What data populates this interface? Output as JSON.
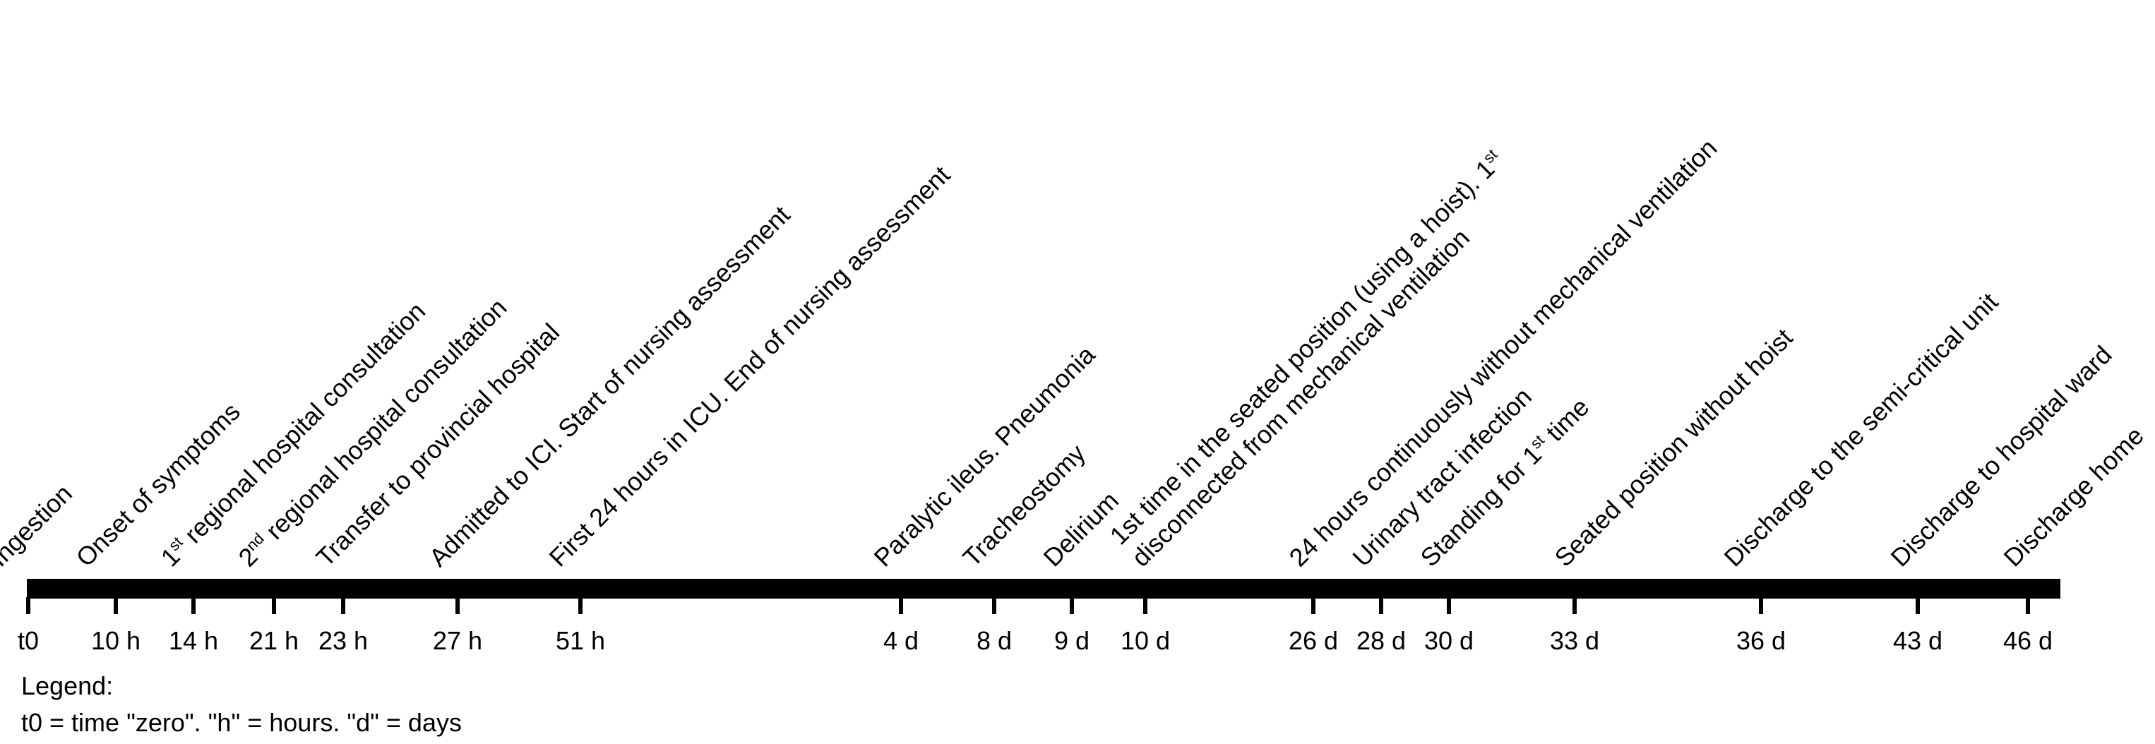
{
  "events": [
    {
      "id": "ingestion",
      "time": "t0",
      "lines": [
        [
          "Ingestion"
        ]
      ]
    },
    {
      "id": "onset",
      "time": "10 h",
      "lines": [
        [
          "Onset of symptoms"
        ]
      ]
    },
    {
      "id": "regional-1",
      "time": "14 h",
      "lines": [
        [
          "1",
          {
            "sup": "st"
          },
          " regional hospital consultation"
        ]
      ]
    },
    {
      "id": "regional-2",
      "time": "21 h",
      "lines": [
        [
          "2",
          {
            "sup": "nd"
          },
          " regional hospital consultation"
        ]
      ]
    },
    {
      "id": "transfer",
      "time": "23 h",
      "lines": [
        [
          "Transfer to provincial hospital"
        ]
      ]
    },
    {
      "id": "admitted",
      "time": "27 h",
      "lines": [
        [
          "Admitted to ICI.  Start of nursing assessment"
        ]
      ]
    },
    {
      "id": "first-24h",
      "time": "51 h",
      "lines": [
        [
          "First 24 hours in ICU.  End of nursing assessment"
        ]
      ]
    },
    {
      "id": "ileus",
      "time": "4 d",
      "lines": [
        [
          "Paralytic ileus.   Pneumonia"
        ]
      ]
    },
    {
      "id": "tracheostomy",
      "time": "8 d",
      "lines": [
        [
          "Tracheostomy"
        ]
      ]
    },
    {
      "id": "delirium",
      "time": "9 d",
      "lines": [
        [
          "Delirium"
        ]
      ]
    },
    {
      "id": "seated-hoist",
      "time": "10 d",
      "lines": [
        [
          "1st time in the seated position (using a hoist).  1",
          {
            "sup": "st"
          }
        ],
        [
          "disconnected from mechanical ventilation"
        ]
      ]
    },
    {
      "id": "no-ventilation",
      "time": "26 d",
      "lines": [
        [
          "24 hours continuously without mechanical ventilation"
        ]
      ]
    },
    {
      "id": "uti",
      "time": "28 d",
      "lines": [
        [
          "Urinary tract infection"
        ]
      ]
    },
    {
      "id": "standing",
      "time": "30 d",
      "lines": [
        [
          "Standing for 1",
          {
            "sup": "st"
          },
          " time"
        ]
      ]
    },
    {
      "id": "seated-no-hoist",
      "time": "33 d",
      "lines": [
        [
          "Seated position without hoist"
        ]
      ]
    },
    {
      "id": "semi-critical",
      "time": "36 d",
      "lines": [
        [
          "Discharge to the semi-critical unit"
        ]
      ]
    },
    {
      "id": "ward",
      "time": "43 d",
      "lines": [
        [
          "Discharge to hospital ward"
        ]
      ]
    },
    {
      "id": "home",
      "time": "46 d",
      "lines": [
        [
          "Discharge home"
        ]
      ]
    }
  ],
  "legend": {
    "title": "Legend:",
    "text": "t0 = time \"zero\".  \"h\" = hours.  \"d\" = days"
  },
  "colors": {
    "axis": "#000000",
    "text": "#000000",
    "background": "#ffffff"
  }
}
